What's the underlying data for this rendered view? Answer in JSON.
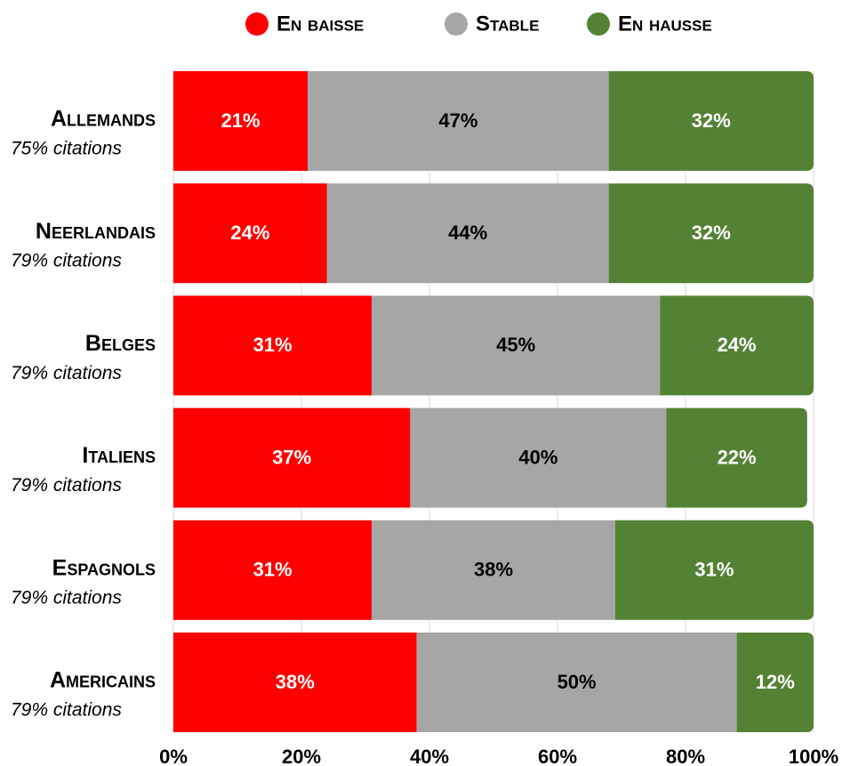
{
  "chart_data": {
    "type": "stacked_barh",
    "categories": [
      "Allemands",
      "Neerlandais",
      "Belges",
      "Italiens",
      "Espagnols",
      "Americains"
    ],
    "category_notes": [
      "75% citations",
      "79% citations",
      "79% citations",
      "79% citations",
      "79% citations",
      "79% citations"
    ],
    "series": [
      {
        "name": "En baisse",
        "color": "#ff0000",
        "label_color": "#ffffff",
        "values": [
          21,
          24,
          31,
          37,
          31,
          38
        ],
        "value_labels": [
          "21%",
          "24%",
          "31%",
          "37%",
          "31%",
          "38%"
        ]
      },
      {
        "name": "Stable",
        "color": "#a6a6a6",
        "label_color": "#000000",
        "values": [
          47,
          44,
          45,
          40,
          38,
          50
        ],
        "value_labels": [
          "47%",
          "44%",
          "45%",
          "40%",
          "38%",
          "50%"
        ]
      },
      {
        "name": "En hausse",
        "color": "#548235",
        "label_color": "#ffffff",
        "values": [
          32,
          32,
          24,
          22,
          31,
          12
        ],
        "value_labels": [
          "32%",
          "32%",
          "24%",
          "22%",
          "31%",
          "12%"
        ]
      }
    ],
    "xlim": [
      0,
      100
    ],
    "xticks": [
      {
        "value": 0,
        "label": "0%"
      },
      {
        "value": 20,
        "label": "20%"
      },
      {
        "value": 40,
        "label": "40%"
      },
      {
        "value": 60,
        "label": "60%"
      },
      {
        "value": 80,
        "label": "80%"
      },
      {
        "value": 100,
        "label": "100%"
      }
    ],
    "grid": true,
    "legend": "top"
  }
}
